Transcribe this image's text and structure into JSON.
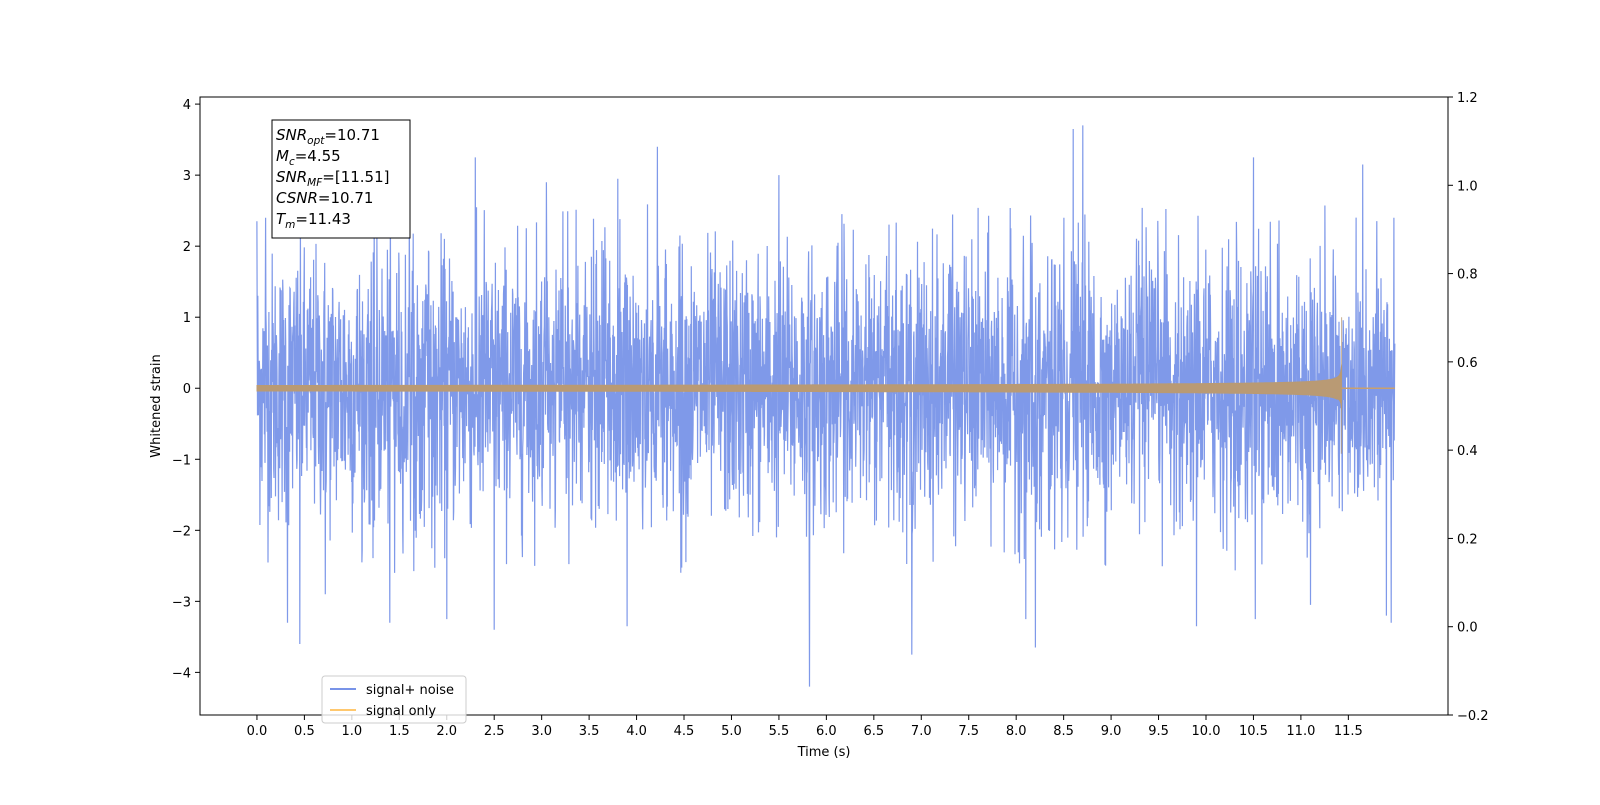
{
  "chart_data": {
    "type": "line",
    "xlabel": "Time (s)",
    "ylabel": "Whitened strain",
    "xlim": [
      -0.6,
      12.55
    ],
    "ylim": [
      -4.6,
      4.1
    ],
    "y2lim": [
      -0.2,
      1.2
    ],
    "x_ticks": [
      0.0,
      0.5,
      1.0,
      1.5,
      2.0,
      2.5,
      3.0,
      3.5,
      4.0,
      4.5,
      5.0,
      5.5,
      6.0,
      6.5,
      7.0,
      7.5,
      8.0,
      8.5,
      9.0,
      9.5,
      10.0,
      10.5,
      11.0,
      11.5
    ],
    "x_tick_labels": [
      "0.0",
      "0.5",
      "1.0",
      "1.5",
      "2.0",
      "2.5",
      "3.0",
      "3.5",
      "4.0",
      "4.5",
      "5.0",
      "5.5",
      "6.0",
      "6.5",
      "7.0",
      "7.5",
      "8.0",
      "8.5",
      "9.0",
      "9.5",
      "10.0",
      "10.5",
      "11.0",
      "11.5"
    ],
    "y_ticks": [
      -4,
      -3,
      -2,
      -1,
      0,
      1,
      2,
      3,
      4
    ],
    "y_tick_labels": [
      "−4",
      "−3",
      "−2",
      "−1",
      "0",
      "1",
      "2",
      "3",
      "4"
    ],
    "y2_ticks": [
      -0.2,
      0.0,
      0.2,
      0.4,
      0.6,
      0.8,
      1.0,
      1.2
    ],
    "y2_tick_labels": [
      "−0.2",
      "0.0",
      "0.2",
      "0.4",
      "0.6",
      "0.8",
      "1.0",
      "1.2"
    ],
    "grid": false,
    "legend_position": "lower-left",
    "series": [
      {
        "name": "signal+ noise",
        "color": "#7893e8",
        "x_range": [
          0.0,
          11.99
        ],
        "typical_amplitude": 1.7,
        "peaks": [
          {
            "x": 0.0,
            "y": 2.35
          },
          {
            "x": 0.09,
            "y": 2.4
          },
          {
            "x": 0.45,
            "y": -3.6
          },
          {
            "x": 0.32,
            "y": -3.3
          },
          {
            "x": 0.72,
            "y": -2.9
          },
          {
            "x": 1.4,
            "y": -3.3
          },
          {
            "x": 1.45,
            "y": -2.6
          },
          {
            "x": 2.0,
            "y": -3.25
          },
          {
            "x": 2.3,
            "y": 3.25
          },
          {
            "x": 2.5,
            "y": -3.4
          },
          {
            "x": 3.05,
            "y": 2.9
          },
          {
            "x": 3.8,
            "y": 2.95
          },
          {
            "x": 3.9,
            "y": -3.35
          },
          {
            "x": 4.22,
            "y": 3.4
          },
          {
            "x": 5.5,
            "y": 3.0
          },
          {
            "x": 5.82,
            "y": -4.2
          },
          {
            "x": 6.9,
            "y": -3.75
          },
          {
            "x": 8.2,
            "y": -3.65
          },
          {
            "x": 8.6,
            "y": 3.65
          },
          {
            "x": 8.7,
            "y": 3.7
          },
          {
            "x": 8.1,
            "y": -3.25
          },
          {
            "x": 9.9,
            "y": -3.35
          },
          {
            "x": 10.5,
            "y": 3.25
          },
          {
            "x": 10.52,
            "y": -3.25
          },
          {
            "x": 11.1,
            "y": -3.05
          },
          {
            "x": 11.65,
            "y": 3.15
          },
          {
            "x": 11.9,
            "y": -3.2
          },
          {
            "x": 11.95,
            "y": -3.3
          },
          {
            "x": 11.98,
            "y": 2.4
          }
        ]
      },
      {
        "name": "signal only",
        "color": "#ffc86e",
        "x_range": [
          0.0,
          11.99
        ],
        "merger_time": 11.43,
        "start_amplitude": 0.04,
        "peak_amplitude": 1.0,
        "peak_min": -0.92
      }
    ]
  },
  "annotation": {
    "lines": [
      {
        "main": "SNR",
        "sub": "opt",
        "rest": "=10.71"
      },
      {
        "main": "M",
        "sub": "c",
        "rest": "=4.55"
      },
      {
        "main": "SNR",
        "sub": "MF",
        "rest": "=[11.51]"
      },
      {
        "main": "CSNR",
        "sub": "",
        "rest": "=10.71"
      },
      {
        "main": "T",
        "sub": "m",
        "rest": "=11.43"
      }
    ]
  }
}
